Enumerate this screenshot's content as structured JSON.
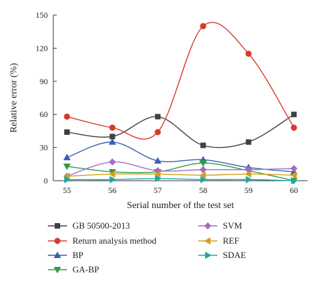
{
  "chart_data": {
    "type": "line",
    "x": [
      55,
      56,
      57,
      58,
      59,
      60
    ],
    "xlabel": "Serial number of the test set",
    "ylabel": "Relative error (%)",
    "xlim": [
      55,
      60
    ],
    "ylim": [
      0,
      150
    ],
    "yticks": [
      0,
      30,
      60,
      90,
      120,
      150
    ],
    "xticks": [
      55,
      56,
      57,
      58,
      59,
      60
    ],
    "grid": false,
    "legend_position": "bottom",
    "series": [
      {
        "name": "GB 50500-2013",
        "color": "#404040",
        "marker": "square",
        "values": [
          44,
          40,
          58,
          32,
          35,
          60
        ]
      },
      {
        "name": "Return analysis method",
        "color": "#d93a2b",
        "marker": "circle",
        "values": [
          58,
          48,
          44,
          140,
          115,
          48
        ]
      },
      {
        "name": "BP",
        "color": "#3a5fb0",
        "marker": "triangle-up",
        "values": [
          21,
          35,
          18,
          19,
          12,
          8
        ]
      },
      {
        "name": "GA-BP",
        "color": "#2e9c3f",
        "marker": "triangle-down",
        "values": [
          13,
          8,
          8,
          16,
          9,
          0
        ]
      },
      {
        "name": "SVM",
        "color": "#a56cc1",
        "marker": "diamond",
        "values": [
          4,
          17,
          9,
          10,
          10,
          11
        ]
      },
      {
        "name": "REF",
        "color": "#d4a017",
        "marker": "triangle-left",
        "values": [
          4,
          6,
          6,
          5,
          6,
          5
        ]
      },
      {
        "name": "SDAE",
        "color": "#1fa6a6",
        "marker": "triangle-right",
        "values": [
          1,
          1,
          2,
          1,
          1,
          0
        ]
      }
    ]
  }
}
